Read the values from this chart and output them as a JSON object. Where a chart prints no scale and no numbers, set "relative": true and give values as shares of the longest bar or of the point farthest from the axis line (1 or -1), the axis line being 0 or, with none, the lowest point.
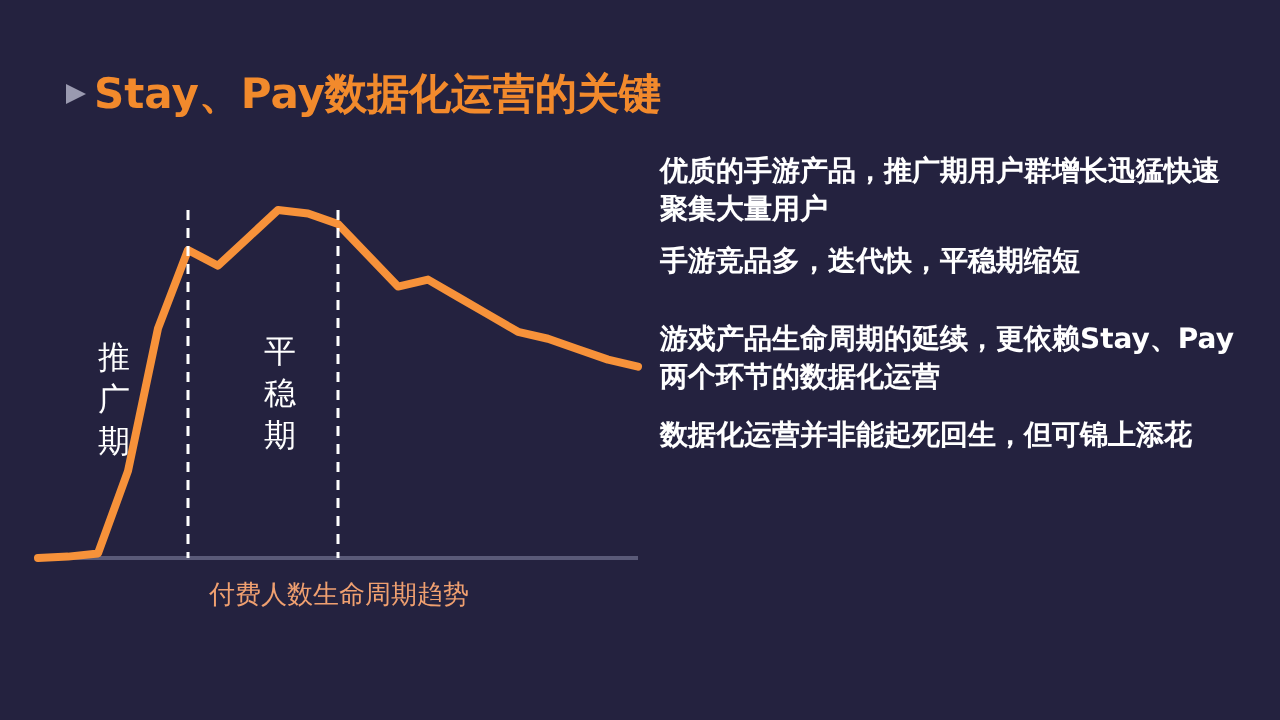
{
  "chart_data": {
    "type": "line",
    "title": "Stay、Pay数据化运营的关键",
    "xlabel": "付费人数生命周期趋势",
    "relative": true,
    "marker": "none",
    "categories": [
      null,
      null,
      null,
      null,
      null,
      null,
      null,
      null,
      null,
      null,
      null,
      null,
      null,
      null,
      null,
      null,
      null,
      null,
      null,
      null,
      null
    ],
    "series": [
      {
        "color": "#f7923a",
        "values": [
          0,
          0.004,
          0.013,
          0.25,
          0.66,
          0.885,
          0.84,
          0.92,
          1,
          0.99,
          0.96,
          0.87,
          0.78,
          0.8,
          0.75,
          0.7,
          0.65,
          0.63,
          0.6,
          0.57,
          0.55
        ]
      }
    ],
    "annotations": [
      "推广期",
      "平稳期",
      "优质的手游产品，推广期用户群增长迅猛快速聚集大量用户",
      "手游竞品多，迭代快，平稳期缩短",
      "游戏产品生命周期的延续，更依赖Stay、Pay两个环节的数据化运营",
      "数据化运营并非能起死回生，但可锦上添花"
    ]
  }
}
